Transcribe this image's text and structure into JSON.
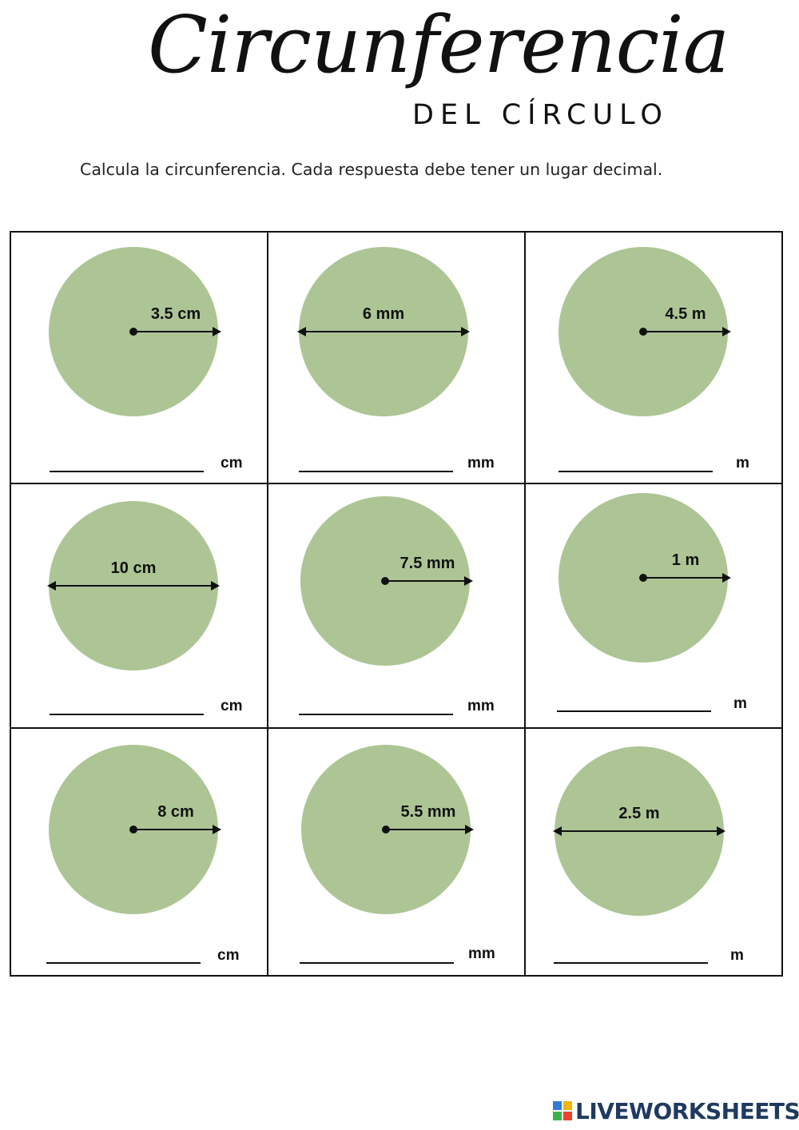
{
  "header": {
    "title": "Circunferencia",
    "subtitle": "DEL CÍRCULO",
    "instructions": "Calcula la circunferencia. Cada respuesta debe tener un lugar decimal."
  },
  "problems": [
    {
      "label": "3.5 cm",
      "measure": "radius",
      "unit": "cm",
      "answer": ""
    },
    {
      "label": "6 mm",
      "measure": "diameter",
      "unit": "mm",
      "answer": ""
    },
    {
      "label": "4.5 m",
      "measure": "radius",
      "unit": "m",
      "answer": ""
    },
    {
      "label": "10 cm",
      "measure": "diameter",
      "unit": "cm",
      "answer": ""
    },
    {
      "label": "7.5 mm",
      "measure": "radius",
      "unit": "mm",
      "answer": ""
    },
    {
      "label": "1 m",
      "measure": "radius",
      "unit": "m",
      "answer": ""
    },
    {
      "label": "8 cm",
      "measure": "radius",
      "unit": "cm",
      "answer": ""
    },
    {
      "label": "5.5 mm",
      "measure": "radius",
      "unit": "mm",
      "answer": ""
    },
    {
      "label": "2.5 m",
      "measure": "diameter",
      "unit": "m",
      "answer": ""
    }
  ],
  "colors": {
    "circle_fill": "#adc595",
    "ink": "#111111"
  },
  "footer": {
    "logo_text": "LIVEWORKSHEETS"
  }
}
